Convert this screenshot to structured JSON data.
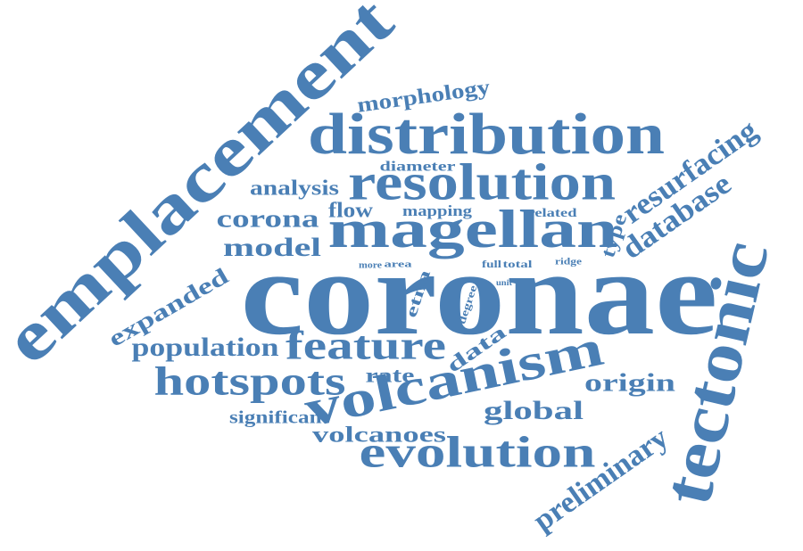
{
  "color": "#4a7fb5",
  "words": [
    "coronae",
    "emplacement",
    "tectonic",
    "distribution",
    "magellan",
    "resolution",
    "volcanism",
    "evolution",
    "feature",
    "hotspots",
    "preliminary",
    "resurfacing",
    "database",
    "population",
    "model",
    "corona",
    "expanded",
    "global",
    "origin",
    "volcanoes",
    "morphology",
    "analysis",
    "flow",
    "data",
    "significant",
    "rate",
    "type",
    "etna",
    "mapping",
    "diameter",
    "related",
    "degree",
    "full",
    "total",
    "more",
    "area",
    "ridge",
    "unit"
  ]
}
